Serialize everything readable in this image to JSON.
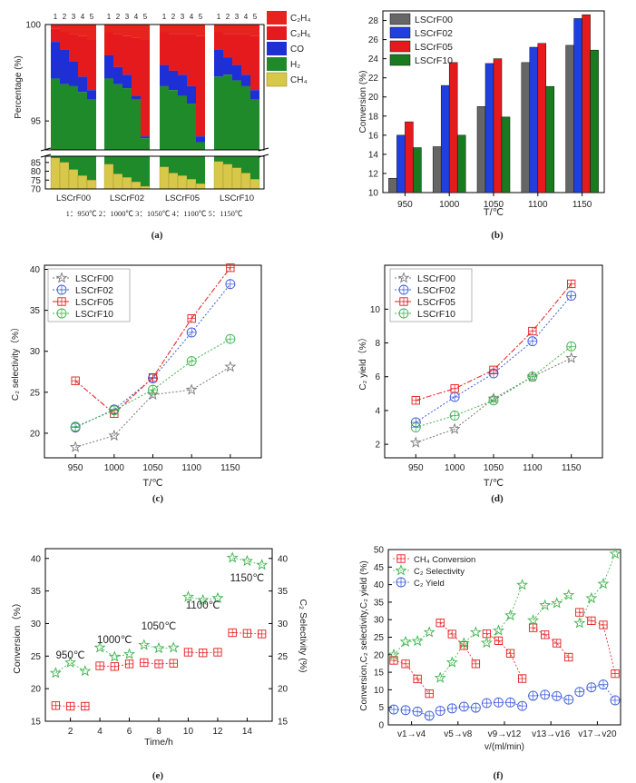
{
  "chart_data": [
    {
      "panel": "(a)",
      "type": "bar",
      "stacked": true,
      "ylabel": "Percentage (%)",
      "upper_yticks": [
        "100",
        "95"
      ],
      "lower_yticks": [
        "85",
        "80",
        "75",
        "70"
      ],
      "position_labels": [
        "1",
        "2",
        "3",
        "4",
        "5"
      ],
      "groups": [
        "LSCrF00",
        "LSCrF02",
        "LSCrF05",
        "LSCrF10"
      ],
      "legend": [
        "C₂H₄",
        "C₂H₆",
        "CO",
        "H₂",
        "CH₄"
      ],
      "footnote": "1：950℃    2：1000℃    3：1050℃    4：1100℃    5：1150℃",
      "stacks_upper_boundaries": {
        "LSCrF00": {
          "h2_top": [
            97.2,
            96.9,
            96.8,
            96.5,
            96.1
          ],
          "co_top": [
            99.1,
            98.7,
            98.1,
            97.3,
            96.6
          ],
          "c2h6_top": [
            99.8,
            99.6,
            99.5,
            99.4,
            99.2
          ]
        },
        "LSCrF02": {
          "h2_top": [
            97.2,
            96.9,
            96.7,
            96.1,
            94.1
          ],
          "co_top": [
            98.4,
            97.8,
            97.4,
            96.3,
            94.2
          ],
          "c2h6_top": [
            99.6,
            99.5,
            99.4,
            99.3,
            99.2
          ]
        },
        "LSCrF05": {
          "h2_top": [
            96.8,
            96.6,
            96.3,
            95.9,
            93.9
          ],
          "co_top": [
            97.9,
            97.6,
            97.4,
            96.8,
            94.2
          ],
          "c2h6_top": [
            99.6,
            99.5,
            99.5,
            99.5,
            99.4
          ]
        },
        "LSCrF10": {
          "h2_top": [
            97.3,
            97.4,
            97.1,
            96.8,
            96.1
          ],
          "co_top": [
            98.7,
            98.3,
            97.9,
            97.4,
            96.6
          ],
          "c2h6_top": [
            99.6,
            99.5,
            99.5,
            99.5,
            99.4
          ]
        }
      },
      "ch4_top_lower": {
        "LSCrF00": [
          87.5,
          85.0,
          81.0,
          77.5,
          75.0
        ],
        "LSCrF02": [
          84.0,
          78.5,
          76.5,
          74.0,
          71.5
        ],
        "LSCrF05": [
          82.5,
          79.0,
          77.5,
          75.5,
          73.0
        ],
        "LSCrF10": [
          85.5,
          84.0,
          82.0,
          79.0,
          75.5
        ]
      },
      "colors": {
        "c2h4": "#e8221c",
        "c2h6": "#e41a1c",
        "co": "#1f2fd6",
        "h2": "#1f8a2a",
        "ch4": "#d8c84a"
      }
    },
    {
      "panel": "(b)",
      "type": "bar",
      "xlabel": "T/℃",
      "ylabel": "Conversion (%)",
      "categories": [
        "950",
        "1000",
        "1050",
        "1100",
        "1150"
      ],
      "ylim": [
        10,
        29
      ],
      "yticks": [
        10,
        12,
        14,
        16,
        18,
        20,
        22,
        24,
        26,
        28
      ],
      "series": [
        {
          "name": "LSCrF00",
          "color": "#666666",
          "values": [
            11.5,
            14.8,
            19.0,
            23.6,
            25.4
          ]
        },
        {
          "name": "LSCrF02",
          "color": "#1f3fe0",
          "values": [
            16.0,
            21.2,
            23.5,
            25.2,
            28.2
          ]
        },
        {
          "name": "LSCrF05",
          "color": "#e41a1c",
          "values": [
            17.4,
            23.6,
            24.0,
            25.6,
            28.6
          ]
        },
        {
          "name": "LSCrF10",
          "color": "#1a7a20",
          "values": [
            14.7,
            16.0,
            17.9,
            21.1,
            24.9
          ]
        }
      ]
    },
    {
      "panel": "(c)",
      "type": "line",
      "xlabel": "T/℃",
      "ylabel": "C₂ selectivity（%）",
      "x": [
        950,
        1000,
        1050,
        1100,
        1150
      ],
      "xlim": [
        910,
        1190
      ],
      "ylim": [
        17,
        40.5
      ],
      "yticks": [
        20,
        25,
        30,
        35,
        40
      ],
      "series": [
        {
          "name": "LSCrF00",
          "color": "#777777",
          "marker": "star",
          "values": [
            18.3,
            19.7,
            24.7,
            25.3,
            28.1
          ]
        },
        {
          "name": "LSCrF02",
          "color": "#3b5bdb",
          "marker": "circle",
          "values": [
            20.7,
            22.9,
            26.7,
            32.3,
            38.2
          ]
        },
        {
          "name": "LSCrF05",
          "color": "#e41a1c",
          "marker": "square",
          "values": [
            26.4,
            22.4,
            26.8,
            34.0,
            40.2
          ]
        },
        {
          "name": "LSCrF10",
          "color": "#3bb34a",
          "marker": "circle",
          "values": [
            20.8,
            22.8,
            25.3,
            28.8,
            31.5
          ]
        }
      ]
    },
    {
      "panel": "(d)",
      "type": "line",
      "xlabel": "T/℃",
      "ylabel": "C₂ yield（%）",
      "x": [
        950,
        1000,
        1050,
        1100,
        1150
      ],
      "xlim": [
        910,
        1190
      ],
      "ylim": [
        1.2,
        12.6
      ],
      "yticks": [
        2,
        4,
        6,
        8,
        10
      ],
      "series": [
        {
          "name": "LSCrF00",
          "color": "#777777",
          "marker": "star",
          "values": [
            2.1,
            2.9,
            4.7,
            6.0,
            7.1
          ]
        },
        {
          "name": "LSCrF02",
          "color": "#3b5bdb",
          "marker": "circle",
          "values": [
            3.3,
            4.8,
            6.2,
            8.1,
            10.8
          ]
        },
        {
          "name": "LSCrF05",
          "color": "#e41a1c",
          "marker": "square",
          "values": [
            4.6,
            5.3,
            6.4,
            8.7,
            11.5
          ]
        },
        {
          "name": "LSCrF10",
          "color": "#3bb34a",
          "marker": "circle",
          "values": [
            3.0,
            3.7,
            4.6,
            6.0,
            7.8
          ]
        }
      ]
    },
    {
      "panel": "(e)",
      "type": "scatter",
      "xlabel": "Time/h",
      "ylabel": "Conversion（%）",
      "y2label": "C₂ Selectivity (%)",
      "xlim": [
        0.3,
        15.7
      ],
      "ylim": [
        15,
        41.5
      ],
      "xticks": [
        2,
        4,
        6,
        8,
        10,
        12,
        14
      ],
      "yticks": [
        15,
        20,
        25,
        30,
        35,
        40
      ],
      "y2ticks": [
        15,
        20,
        25,
        30,
        35,
        40
      ],
      "annotations": [
        {
          "text": "950℃",
          "x": 2,
          "y": 24.6
        },
        {
          "text": "1000℃",
          "x": 5,
          "y": 27.0
        },
        {
          "text": "1050℃",
          "x": 8,
          "y": 29.1
        },
        {
          "text": "1100℃",
          "x": 11,
          "y": 32.3
        },
        {
          "text": "1150℃",
          "x": 14,
          "y": 36.5
        }
      ],
      "series": [
        {
          "name": "Conversion",
          "color": "#e41a1c",
          "marker": "square",
          "segments": [
            {
              "x": [
                1,
                2,
                3
              ],
              "values": [
                17.4,
                17.3,
                17.3
              ]
            },
            {
              "x": [
                4,
                5,
                6
              ],
              "values": [
                23.5,
                23.4,
                23.8
              ]
            },
            {
              "x": [
                7,
                8,
                9
              ],
              "values": [
                24.0,
                23.8,
                23.9
              ]
            },
            {
              "x": [
                10,
                11,
                12
              ],
              "values": [
                25.6,
                25.5,
                25.6
              ]
            },
            {
              "x": [
                13,
                14,
                15
              ],
              "values": [
                28.6,
                28.5,
                28.4
              ]
            }
          ]
        },
        {
          "name": "C₂ Selectivity",
          "color": "#3bb34a",
          "marker": "star",
          "segments": [
            {
              "x": [
                1,
                2,
                3
              ],
              "values": [
                22.4,
                24.0,
                22.7
              ]
            },
            {
              "x": [
                4,
                5,
                6
              ],
              "values": [
                26.3,
                24.9,
                25.3
              ]
            },
            {
              "x": [
                7,
                8,
                9
              ],
              "values": [
                26.7,
                26.2,
                26.3
              ]
            },
            {
              "x": [
                10,
                11,
                12
              ],
              "values": [
                34.1,
                33.6,
                33.9
              ]
            },
            {
              "x": [
                13,
                14,
                15
              ],
              "values": [
                40.1,
                39.6,
                39.0
              ]
            }
          ]
        }
      ]
    },
    {
      "panel": "(f)",
      "type": "line",
      "xlabel": "v/(ml/min)",
      "ylabel": "Conversion,C₂ selectivity,C₂ yield (%)",
      "categories": [
        "v1→v4",
        "v5→v8",
        "v9→v12",
        "v13→v16",
        "v17→v20"
      ],
      "ylim": [
        0,
        50
      ],
      "yticks": [
        0,
        5,
        10,
        15,
        20,
        25,
        30,
        35,
        40,
        45,
        50
      ],
      "series": [
        {
          "name": "CH₄ Conversion",
          "color": "#e41a1c",
          "marker": "square",
          "groups": [
            [
              18.4,
              17.4,
              13.1,
              8.9
            ],
            [
              29.1,
              25.9,
              22.6,
              17.4
            ],
            [
              26.0,
              24.0,
              20.4,
              13.2
            ],
            [
              27.7,
              25.7,
              23.3,
              19.3
            ],
            [
              32.1,
              29.7,
              28.5,
              14.6
            ]
          ]
        },
        {
          "name": "C₂ Selectivity",
          "color": "#3bb34a",
          "marker": "star",
          "groups": [
            [
              20.0,
              23.7,
              23.9,
              26.4
            ],
            [
              13.4,
              17.8,
              23.3,
              26.4
            ],
            [
              23.4,
              26.9,
              31.2,
              39.9
            ],
            [
              29.8,
              34.1,
              34.7,
              37.0
            ],
            [
              29.0,
              36.1,
              40.2,
              48.8
            ]
          ]
        },
        {
          "name": "C₂ Yield",
          "color": "#3b5bdb",
          "marker": "circle",
          "groups": [
            [
              4.4,
              4.2,
              3.8,
              2.6
            ],
            [
              4.0,
              4.7,
              5.2,
              4.9
            ],
            [
              6.2,
              6.4,
              6.4,
              5.4
            ],
            [
              8.3,
              8.6,
              8.2,
              7.2
            ],
            [
              9.4,
              10.7,
              11.5,
              7.0
            ]
          ]
        }
      ]
    }
  ]
}
